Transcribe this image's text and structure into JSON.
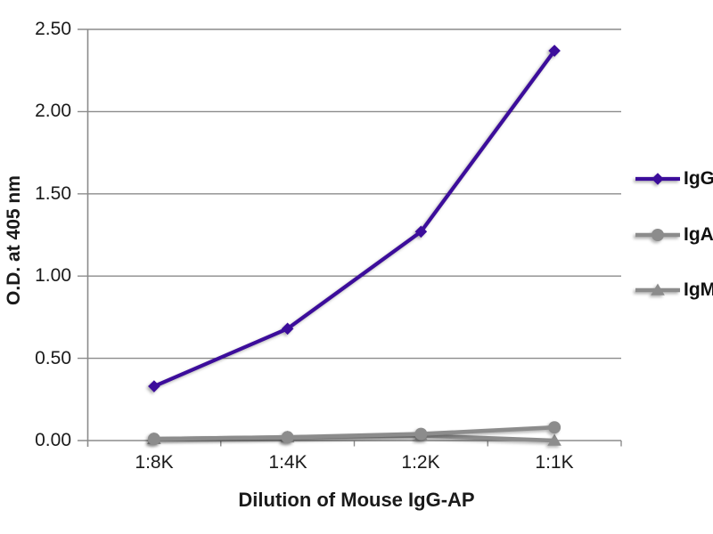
{
  "chart_data": {
    "type": "line",
    "title": "",
    "xlabel": "Dilution of Mouse IgG-AP",
    "ylabel": "O.D. at 405 nm",
    "categories": [
      "1:8K",
      "1:4K",
      "1:2K",
      "1:1K"
    ],
    "series": [
      {
        "name": "IgG",
        "color": "#3C0D9B",
        "marker": "diamond",
        "line_width": 4.2,
        "values": [
          0.33,
          0.68,
          1.27,
          2.37
        ]
      },
      {
        "name": "IgA",
        "color": "#8C8C8C",
        "marker": "circle",
        "line_width": 4.6,
        "values": [
          0.01,
          0.02,
          0.04,
          0.08
        ]
      },
      {
        "name": "IgM",
        "color": "#8C8C8C",
        "marker": "triangle",
        "line_width": 4.6,
        "values": [
          0.01,
          0.02,
          0.03,
          0.0
        ]
      }
    ],
    "ylim": [
      0,
      2.5
    ],
    "ytick_labels": [
      "2.50",
      "2.00",
      "1.50",
      "1.00",
      "0.50",
      "0.00"
    ],
    "grid": true,
    "legend_position": "right",
    "axis_color": "#8B8B8B",
    "text_color": "#1A1A1A"
  }
}
